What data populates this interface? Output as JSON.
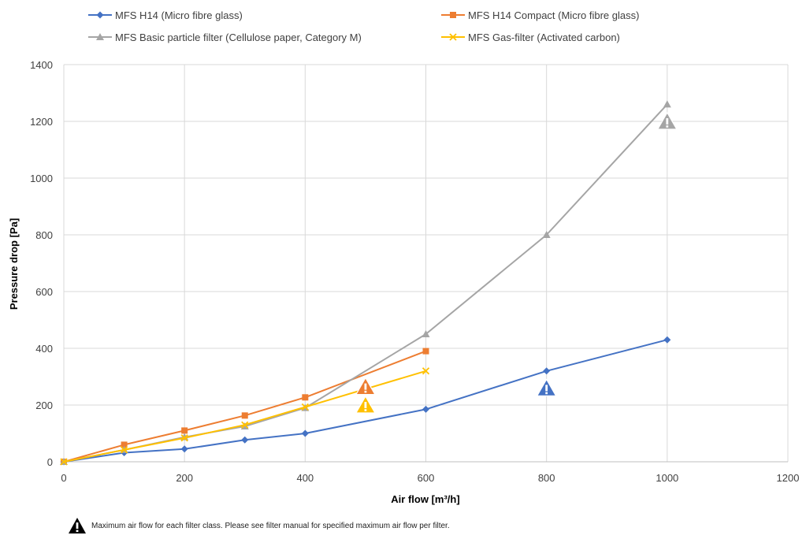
{
  "chart_data": {
    "type": "line",
    "title": "",
    "xlabel": "Air flow [m³/h]",
    "ylabel": "Pressure drop [Pa]",
    "xlim": [
      0,
      1200
    ],
    "ylim": [
      0,
      1400
    ],
    "x_ticks": [
      0,
      200,
      400,
      600,
      800,
      1000,
      1200
    ],
    "y_ticks": [
      0,
      200,
      400,
      600,
      800,
      1000,
      1200,
      1400
    ],
    "grid": true,
    "legend_position": "top",
    "series": [
      {
        "name": "MFS H14 (Micro fibre glass)",
        "color": "#4472c4",
        "marker": "diamond",
        "points": [
          [
            0,
            0
          ],
          [
            100,
            32
          ],
          [
            200,
            45
          ],
          [
            300,
            77
          ],
          [
            400,
            100
          ],
          [
            600,
            185
          ],
          [
            800,
            320
          ],
          [
            1000,
            430
          ]
        ],
        "max_airflow_warning": [
          800,
          260
        ]
      },
      {
        "name": "MFS H14 Compact (Micro fibre glass)",
        "color": "#ed7d31",
        "marker": "square",
        "points": [
          [
            0,
            0
          ],
          [
            100,
            60
          ],
          [
            200,
            110
          ],
          [
            300,
            163
          ],
          [
            400,
            227
          ],
          [
            600,
            390
          ]
        ],
        "max_airflow_warning": [
          500,
          265
        ]
      },
      {
        "name": "MFS Basic particle filter (Cellulose paper, Category M)",
        "color": "#a5a5a5",
        "marker": "triangle",
        "points": [
          [
            0,
            0
          ],
          [
            100,
            42
          ],
          [
            200,
            87
          ],
          [
            300,
            125
          ],
          [
            400,
            190
          ],
          [
            600,
            450
          ],
          [
            800,
            800
          ],
          [
            1000,
            1260
          ]
        ],
        "max_airflow_warning": [
          1000,
          1200
        ]
      },
      {
        "name": "MFS Gas-filter (Activated carbon)",
        "color": "#ffc000",
        "marker": "x",
        "points": [
          [
            0,
            0
          ],
          [
            100,
            42
          ],
          [
            200,
            84
          ],
          [
            300,
            130
          ],
          [
            400,
            193
          ],
          [
            600,
            320
          ]
        ],
        "max_airflow_warning": [
          500,
          200
        ]
      }
    ]
  },
  "footnote": {
    "text": "Maximum air flow for each filter class. Please see filter manual for specified maximum air flow per filter.",
    "icon": "warning-triangle-icon"
  }
}
